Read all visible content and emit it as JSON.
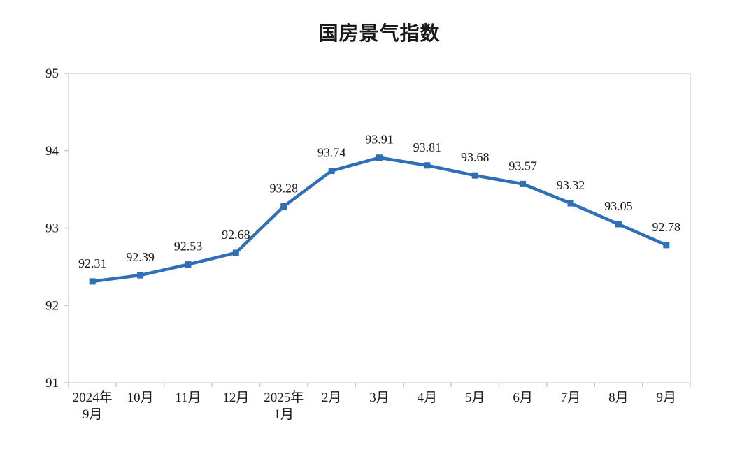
{
  "chart_data": {
    "type": "line",
    "title": "国房景气指数",
    "categories": [
      "2024年\n9月",
      "10月",
      "11月",
      "12月",
      "2025年\n1月",
      "2月",
      "3月",
      "4月",
      "5月",
      "6月",
      "7月",
      "8月",
      "9月"
    ],
    "series": [
      {
        "name": "国房景气指数",
        "values": [
          92.31,
          92.39,
          92.53,
          92.68,
          93.28,
          93.74,
          93.91,
          93.81,
          93.68,
          93.57,
          93.32,
          93.05,
          92.78
        ]
      }
    ],
    "data_labels": [
      "92.31",
      "92.39",
      "92.53",
      "92.68",
      "93.28",
      "93.74",
      "93.91",
      "93.81",
      "93.68",
      "93.57",
      "93.32",
      "93.05",
      "92.78"
    ],
    "ylim": [
      91,
      95
    ],
    "yticks": [
      91,
      92,
      93,
      94,
      95
    ],
    "grid": false,
    "legend_position": "none",
    "marker": "square",
    "colors": {
      "line": "#2E6FB7",
      "marker": "#2E6FB7",
      "plot_border": "#D9D9D9",
      "tick": "#C9C9C9",
      "text": "#1a1a1a",
      "background": "#FFFFFF"
    }
  }
}
